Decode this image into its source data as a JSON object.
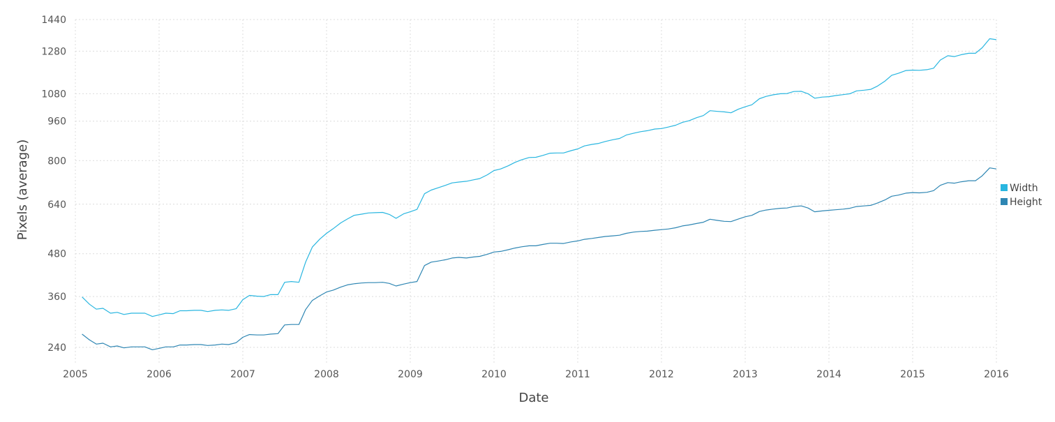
{
  "chart_data": {
    "type": "line",
    "xlabel": "Date",
    "ylabel": "Pixels (average)",
    "xlim": [
      2005,
      2016
    ],
    "ylim": [
      200,
      1440
    ],
    "x_ticks": [
      2005,
      2006,
      2007,
      2008,
      2009,
      2010,
      2011,
      2012,
      2013,
      2014,
      2015,
      2016
    ],
    "y_ticks": [
      240,
      360,
      480,
      640,
      800,
      960,
      1080,
      1280,
      1440
    ],
    "y_scale": "sqrt",
    "grid": true,
    "legend_position": "right",
    "series": [
      {
        "name": "Width",
        "color": "#29b6e0",
        "points": [
          [
            2005.08,
            359
          ],
          [
            2005.17,
            340
          ],
          [
            2005.25,
            328
          ],
          [
            2005.33,
            330
          ],
          [
            2005.42,
            318
          ],
          [
            2005.5,
            320
          ],
          [
            2005.58,
            315
          ],
          [
            2005.67,
            318
          ],
          [
            2005.75,
            318
          ],
          [
            2005.83,
            318
          ],
          [
            2005.92,
            310
          ],
          [
            2006.0,
            314
          ],
          [
            2006.08,
            318
          ],
          [
            2006.17,
            317
          ],
          [
            2006.25,
            324
          ],
          [
            2006.33,
            324
          ],
          [
            2006.42,
            325
          ],
          [
            2006.5,
            325
          ],
          [
            2006.58,
            322
          ],
          [
            2006.67,
            325
          ],
          [
            2006.75,
            326
          ],
          [
            2006.83,
            325
          ],
          [
            2006.92,
            329
          ],
          [
            2007.0,
            352
          ],
          [
            2007.08,
            363
          ],
          [
            2007.17,
            361
          ],
          [
            2007.25,
            360
          ],
          [
            2007.33,
            365
          ],
          [
            2007.42,
            365
          ],
          [
            2007.5,
            398
          ],
          [
            2007.58,
            400
          ],
          [
            2007.67,
            398
          ],
          [
            2007.75,
            455
          ],
          [
            2007.83,
            500
          ],
          [
            2007.92,
            525
          ],
          [
            2008.0,
            543
          ],
          [
            2008.08,
            558
          ],
          [
            2008.17,
            577
          ],
          [
            2008.25,
            590
          ],
          [
            2008.33,
            602
          ],
          [
            2008.42,
            606
          ],
          [
            2008.5,
            610
          ],
          [
            2008.58,
            611
          ],
          [
            2008.67,
            612
          ],
          [
            2008.75,
            605
          ],
          [
            2008.83,
            592
          ],
          [
            2008.92,
            607
          ],
          [
            2009.0,
            614
          ],
          [
            2009.08,
            622
          ],
          [
            2009.17,
            677
          ],
          [
            2009.25,
            690
          ],
          [
            2009.33,
            698
          ],
          [
            2009.42,
            707
          ],
          [
            2009.5,
            716
          ],
          [
            2009.58,
            719
          ],
          [
            2009.67,
            722
          ],
          [
            2009.75,
            727
          ],
          [
            2009.83,
            732
          ],
          [
            2009.92,
            746
          ],
          [
            2010.0,
            762
          ],
          [
            2010.08,
            768
          ],
          [
            2010.17,
            780
          ],
          [
            2010.25,
            793
          ],
          [
            2010.33,
            803
          ],
          [
            2010.42,
            812
          ],
          [
            2010.5,
            813
          ],
          [
            2010.58,
            820
          ],
          [
            2010.67,
            829
          ],
          [
            2010.75,
            830
          ],
          [
            2010.83,
            830
          ],
          [
            2010.92,
            839
          ],
          [
            2011.0,
            846
          ],
          [
            2011.08,
            858
          ],
          [
            2011.17,
            864
          ],
          [
            2011.25,
            868
          ],
          [
            2011.33,
            876
          ],
          [
            2011.42,
            883
          ],
          [
            2011.5,
            888
          ],
          [
            2011.58,
            902
          ],
          [
            2011.67,
            910
          ],
          [
            2011.75,
            916
          ],
          [
            2011.83,
            920
          ],
          [
            2011.92,
            927
          ],
          [
            2012.0,
            929
          ],
          [
            2012.08,
            935
          ],
          [
            2012.17,
            943
          ],
          [
            2012.25,
            955
          ],
          [
            2012.33,
            962
          ],
          [
            2012.42,
            975
          ],
          [
            2012.5,
            984
          ],
          [
            2012.58,
            1005
          ],
          [
            2012.67,
            1002
          ],
          [
            2012.75,
            1000
          ],
          [
            2012.83,
            996
          ],
          [
            2012.92,
            1012
          ],
          [
            2013.0,
            1022
          ],
          [
            2013.08,
            1031
          ],
          [
            2013.17,
            1058
          ],
          [
            2013.25,
            1068
          ],
          [
            2013.33,
            1075
          ],
          [
            2013.42,
            1080
          ],
          [
            2013.5,
            1081
          ],
          [
            2013.58,
            1090
          ],
          [
            2013.67,
            1091
          ],
          [
            2013.75,
            1080
          ],
          [
            2013.83,
            1060
          ],
          [
            2013.92,
            1065
          ],
          [
            2014.0,
            1067
          ],
          [
            2014.08,
            1072
          ],
          [
            2014.17,
            1076
          ],
          [
            2014.25,
            1080
          ],
          [
            2014.33,
            1093
          ],
          [
            2014.42,
            1096
          ],
          [
            2014.5,
            1100
          ],
          [
            2014.58,
            1115
          ],
          [
            2014.67,
            1138
          ],
          [
            2014.75,
            1165
          ],
          [
            2014.83,
            1174
          ],
          [
            2014.92,
            1187
          ],
          [
            2015.0,
            1189
          ],
          [
            2015.08,
            1188
          ],
          [
            2015.17,
            1191
          ],
          [
            2015.25,
            1198
          ],
          [
            2015.33,
            1237
          ],
          [
            2015.42,
            1258
          ],
          [
            2015.5,
            1254
          ],
          [
            2015.58,
            1263
          ],
          [
            2015.67,
            1270
          ],
          [
            2015.75,
            1270
          ],
          [
            2015.83,
            1297
          ],
          [
            2015.92,
            1342
          ],
          [
            2016.0,
            1337
          ]
        ]
      },
      {
        "name": "Height",
        "color": "#2e86b3",
        "points": [
          [
            2005.08,
            269
          ],
          [
            2005.17,
            256
          ],
          [
            2005.25,
            247
          ],
          [
            2005.33,
            249
          ],
          [
            2005.42,
            241
          ],
          [
            2005.5,
            243
          ],
          [
            2005.58,
            239
          ],
          [
            2005.67,
            241
          ],
          [
            2005.75,
            241
          ],
          [
            2005.83,
            241
          ],
          [
            2005.92,
            235
          ],
          [
            2006.0,
            238
          ],
          [
            2006.08,
            241
          ],
          [
            2006.17,
            241
          ],
          [
            2006.25,
            245
          ],
          [
            2006.33,
            245
          ],
          [
            2006.42,
            246
          ],
          [
            2006.5,
            246
          ],
          [
            2006.58,
            244
          ],
          [
            2006.67,
            245
          ],
          [
            2006.75,
            247
          ],
          [
            2006.83,
            246
          ],
          [
            2006.92,
            250
          ],
          [
            2007.0,
            262
          ],
          [
            2007.08,
            268
          ],
          [
            2007.17,
            267
          ],
          [
            2007.25,
            267
          ],
          [
            2007.33,
            269
          ],
          [
            2007.42,
            270
          ],
          [
            2007.5,
            290
          ],
          [
            2007.58,
            291
          ],
          [
            2007.67,
            291
          ],
          [
            2007.75,
            327
          ],
          [
            2007.83,
            350
          ],
          [
            2007.92,
            362
          ],
          [
            2008.0,
            372
          ],
          [
            2008.08,
            377
          ],
          [
            2008.17,
            385
          ],
          [
            2008.25,
            391
          ],
          [
            2008.33,
            394
          ],
          [
            2008.42,
            396
          ],
          [
            2008.5,
            397
          ],
          [
            2008.58,
            397
          ],
          [
            2008.67,
            398
          ],
          [
            2008.75,
            395
          ],
          [
            2008.83,
            388
          ],
          [
            2008.92,
            393
          ],
          [
            2009.0,
            397
          ],
          [
            2009.08,
            400
          ],
          [
            2009.17,
            445
          ],
          [
            2009.25,
            455
          ],
          [
            2009.33,
            458
          ],
          [
            2009.42,
            462
          ],
          [
            2009.5,
            467
          ],
          [
            2009.58,
            469
          ],
          [
            2009.67,
            467
          ],
          [
            2009.75,
            470
          ],
          [
            2009.83,
            472
          ],
          [
            2009.92,
            478
          ],
          [
            2010.0,
            485
          ],
          [
            2010.08,
            487
          ],
          [
            2010.17,
            492
          ],
          [
            2010.25,
            497
          ],
          [
            2010.33,
            501
          ],
          [
            2010.42,
            504
          ],
          [
            2010.5,
            504
          ],
          [
            2010.58,
            508
          ],
          [
            2010.67,
            512
          ],
          [
            2010.75,
            512
          ],
          [
            2010.83,
            511
          ],
          [
            2010.92,
            516
          ],
          [
            2011.0,
            519
          ],
          [
            2011.08,
            524
          ],
          [
            2011.17,
            527
          ],
          [
            2011.25,
            530
          ],
          [
            2011.33,
            533
          ],
          [
            2011.42,
            535
          ],
          [
            2011.5,
            537
          ],
          [
            2011.58,
            543
          ],
          [
            2011.67,
            547
          ],
          [
            2011.75,
            549
          ],
          [
            2011.83,
            550
          ],
          [
            2011.92,
            553
          ],
          [
            2012.0,
            555
          ],
          [
            2012.08,
            557
          ],
          [
            2012.17,
            561
          ],
          [
            2012.25,
            567
          ],
          [
            2012.33,
            570
          ],
          [
            2012.42,
            575
          ],
          [
            2012.5,
            579
          ],
          [
            2012.58,
            589
          ],
          [
            2012.67,
            585
          ],
          [
            2012.75,
            582
          ],
          [
            2012.83,
            581
          ],
          [
            2012.92,
            590
          ],
          [
            2013.0,
            597
          ],
          [
            2013.08,
            602
          ],
          [
            2013.17,
            615
          ],
          [
            2013.25,
            620
          ],
          [
            2013.33,
            623
          ],
          [
            2013.42,
            626
          ],
          [
            2013.5,
            627
          ],
          [
            2013.58,
            632
          ],
          [
            2013.67,
            634
          ],
          [
            2013.75,
            627
          ],
          [
            2013.83,
            614
          ],
          [
            2013.92,
            617
          ],
          [
            2014.0,
            619
          ],
          [
            2014.08,
            621
          ],
          [
            2014.17,
            623
          ],
          [
            2014.25,
            626
          ],
          [
            2014.33,
            632
          ],
          [
            2014.42,
            634
          ],
          [
            2014.5,
            636
          ],
          [
            2014.58,
            644
          ],
          [
            2014.67,
            655
          ],
          [
            2014.75,
            668
          ],
          [
            2014.83,
            672
          ],
          [
            2014.92,
            679
          ],
          [
            2015.0,
            681
          ],
          [
            2015.08,
            680
          ],
          [
            2015.17,
            682
          ],
          [
            2015.25,
            688
          ],
          [
            2015.33,
            707
          ],
          [
            2015.42,
            717
          ],
          [
            2015.5,
            715
          ],
          [
            2015.58,
            720
          ],
          [
            2015.67,
            724
          ],
          [
            2015.75,
            724
          ],
          [
            2015.83,
            742
          ],
          [
            2015.92,
            772
          ],
          [
            2016.0,
            768
          ]
        ]
      }
    ]
  }
}
